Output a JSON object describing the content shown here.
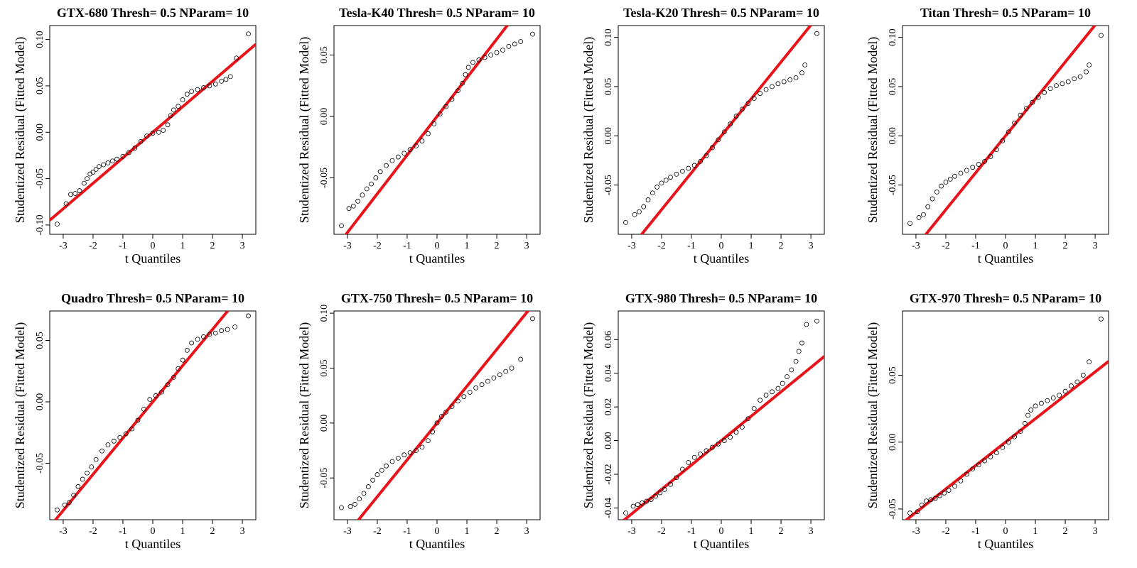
{
  "chart_data": [
    {
      "type": "scatter",
      "title": "GTX-680 Thresh= 0.5 NParam= 10",
      "xlabel": "t Quantiles",
      "ylabel": "Studentized Residual (Fitted Model)",
      "xlim": [
        -3.45,
        3.45
      ],
      "ylim": [
        -0.11,
        0.115
      ],
      "x_ticks": [
        "-3",
        "-2",
        "-1",
        "0",
        "1",
        "2",
        "3"
      ],
      "y_ticks": [
        "-0.10",
        "-0.05",
        "0.00",
        "0.05",
        "0.10"
      ],
      "reference_line": {
        "intercept": 0.0,
        "slope": 0.0275,
        "color": "#e8141a"
      },
      "points": {
        "x": [
          -3.2,
          -2.9,
          -2.75,
          -2.6,
          -2.45,
          -2.3,
          -2.2,
          -2.1,
          -2.0,
          -1.9,
          -1.8,
          -1.65,
          -1.5,
          -1.35,
          -1.2,
          -1.0,
          -0.8,
          -0.6,
          -0.4,
          -0.2,
          0.0,
          0.2,
          0.35,
          0.5,
          0.6,
          0.7,
          0.85,
          1.0,
          1.15,
          1.3,
          1.5,
          1.7,
          1.9,
          2.1,
          2.3,
          2.45,
          2.6,
          2.8,
          3.2
        ],
        "y": [
          -0.099,
          -0.077,
          -0.067,
          -0.066,
          -0.063,
          -0.055,
          -0.05,
          -0.045,
          -0.043,
          -0.04,
          -0.037,
          -0.035,
          -0.033,
          -0.031,
          -0.029,
          -0.026,
          -0.022,
          -0.017,
          -0.01,
          -0.004,
          -0.001,
          0.0,
          0.002,
          0.008,
          0.018,
          0.024,
          0.028,
          0.035,
          0.041,
          0.044,
          0.046,
          0.048,
          0.05,
          0.052,
          0.055,
          0.057,
          0.06,
          0.08,
          0.106
        ]
      }
    },
    {
      "type": "scatter",
      "title": "Tesla-K40 Thresh= 0.5 NParam= 10",
      "xlabel": "t Quantiles",
      "ylabel": "Studentized Residual (Fitted Model)",
      "xlim": [
        -3.45,
        3.45
      ],
      "ylim": [
        -0.096,
        0.074
      ],
      "x_ticks": [
        "-3",
        "-2",
        "-1",
        "0",
        "1",
        "2",
        "3"
      ],
      "y_ticks": [
        "-0.05",
        "0.00",
        "0.05"
      ],
      "reference_line": {
        "intercept": 0.0,
        "slope": 0.0315,
        "color": "#e8141a"
      },
      "points": {
        "x": [
          -3.2,
          -2.95,
          -2.8,
          -2.65,
          -2.5,
          -2.35,
          -2.2,
          -2.05,
          -1.9,
          -1.7,
          -1.5,
          -1.3,
          -1.1,
          -0.9,
          -0.7,
          -0.5,
          -0.3,
          -0.1,
          0.1,
          0.3,
          0.5,
          0.7,
          0.85,
          0.95,
          1.05,
          1.2,
          1.4,
          1.6,
          1.8,
          2.0,
          2.2,
          2.4,
          2.6,
          2.8,
          3.2
        ],
        "y": [
          -0.089,
          -0.075,
          -0.073,
          -0.069,
          -0.064,
          -0.059,
          -0.055,
          -0.05,
          -0.045,
          -0.04,
          -0.036,
          -0.033,
          -0.03,
          -0.027,
          -0.024,
          -0.02,
          -0.014,
          -0.006,
          0.002,
          0.008,
          0.014,
          0.021,
          0.027,
          0.034,
          0.04,
          0.044,
          0.046,
          0.048,
          0.05,
          0.052,
          0.054,
          0.057,
          0.059,
          0.061,
          0.067
        ]
      }
    },
    {
      "type": "scatter",
      "title": "Tesla-K20 Thresh= 0.5 NParam= 10",
      "xlabel": "t Quantiles",
      "ylabel": "Studentized Residual (Fitted Model)",
      "xlim": [
        -3.45,
        3.45
      ],
      "ylim": [
        -0.1,
        0.112
      ],
      "x_ticks": [
        "-3",
        "-2",
        "-1",
        "0",
        "1",
        "2",
        "3"
      ],
      "y_ticks": [
        "-0.05",
        "0.00",
        "0.05",
        "0.10"
      ],
      "reference_line": {
        "intercept": 0.0,
        "slope": 0.0375,
        "color": "#e8141a"
      },
      "points": {
        "x": [
          -3.2,
          -2.9,
          -2.75,
          -2.6,
          -2.45,
          -2.3,
          -2.15,
          -2.0,
          -1.85,
          -1.7,
          -1.5,
          -1.3,
          -1.1,
          -0.9,
          -0.7,
          -0.5,
          -0.3,
          -0.1,
          0.1,
          0.3,
          0.5,
          0.7,
          0.9,
          1.1,
          1.3,
          1.5,
          1.7,
          1.9,
          2.1,
          2.3,
          2.5,
          2.7,
          2.8,
          3.2
        ],
        "y": [
          -0.088,
          -0.08,
          -0.077,
          -0.072,
          -0.065,
          -0.058,
          -0.052,
          -0.048,
          -0.045,
          -0.042,
          -0.039,
          -0.036,
          -0.033,
          -0.03,
          -0.026,
          -0.02,
          -0.012,
          -0.004,
          0.004,
          0.012,
          0.02,
          0.027,
          0.033,
          0.038,
          0.043,
          0.047,
          0.05,
          0.053,
          0.055,
          0.057,
          0.059,
          0.064,
          0.072,
          0.104
        ]
      }
    },
    {
      "type": "scatter",
      "title": "Titan Thresh= 0.5 NParam= 10",
      "xlabel": "t Quantiles",
      "ylabel": "Studentized Residual (Fitted Model)",
      "xlim": [
        -3.45,
        3.45
      ],
      "ylim": [
        -0.1,
        0.112
      ],
      "x_ticks": [
        "-3",
        "-2",
        "-1",
        "0",
        "1",
        "2",
        "3"
      ],
      "y_ticks": [
        "-0.05",
        "0.00",
        "0.05",
        "0.10"
      ],
      "reference_line": {
        "intercept": 0.0,
        "slope": 0.0375,
        "color": "#e8141a"
      },
      "points": {
        "x": [
          -3.2,
          -2.9,
          -2.75,
          -2.6,
          -2.45,
          -2.3,
          -2.15,
          -2.0,
          -1.85,
          -1.7,
          -1.5,
          -1.3,
          -1.1,
          -0.9,
          -0.7,
          -0.5,
          -0.3,
          -0.1,
          0.1,
          0.3,
          0.5,
          0.7,
          0.9,
          1.1,
          1.3,
          1.5,
          1.7,
          1.9,
          2.1,
          2.3,
          2.5,
          2.7,
          2.8,
          3.2
        ],
        "y": [
          -0.089,
          -0.083,
          -0.08,
          -0.072,
          -0.064,
          -0.057,
          -0.051,
          -0.047,
          -0.044,
          -0.041,
          -0.038,
          -0.035,
          -0.032,
          -0.029,
          -0.026,
          -0.021,
          -0.014,
          -0.005,
          0.004,
          0.013,
          0.021,
          0.028,
          0.034,
          0.039,
          0.044,
          0.048,
          0.051,
          0.053,
          0.055,
          0.058,
          0.06,
          0.065,
          0.072,
          0.102
        ]
      }
    },
    {
      "type": "scatter",
      "title": "Quadro Thresh= 0.5 NParam= 10",
      "xlabel": "t Quantiles",
      "ylabel": "Studentized Residual (Fitted Model)",
      "xlim": [
        -3.45,
        3.45
      ],
      "ylim": [
        -0.096,
        0.074
      ],
      "x_ticks": [
        "-3",
        "-2",
        "-1",
        "0",
        "1",
        "2",
        "3"
      ],
      "y_ticks": [
        "-0.05",
        "0.00",
        "0.05"
      ],
      "reference_line": {
        "intercept": 0.0,
        "slope": 0.0295,
        "color": "#e8141a"
      },
      "points": {
        "x": [
          -3.2,
          -2.95,
          -2.8,
          -2.65,
          -2.5,
          -2.35,
          -2.2,
          -2.05,
          -1.9,
          -1.7,
          -1.5,
          -1.3,
          -1.1,
          -0.9,
          -0.7,
          -0.5,
          -0.3,
          -0.1,
          0.1,
          0.3,
          0.5,
          0.7,
          0.85,
          1.0,
          1.15,
          1.3,
          1.5,
          1.7,
          1.9,
          2.1,
          2.3,
          2.5,
          2.75,
          3.2
        ],
        "y": [
          -0.088,
          -0.084,
          -0.082,
          -0.076,
          -0.069,
          -0.063,
          -0.058,
          -0.053,
          -0.047,
          -0.04,
          -0.035,
          -0.032,
          -0.029,
          -0.026,
          -0.022,
          -0.015,
          -0.006,
          0.002,
          0.005,
          0.008,
          0.014,
          0.02,
          0.027,
          0.034,
          0.042,
          0.048,
          0.051,
          0.053,
          0.055,
          0.056,
          0.058,
          0.059,
          0.061,
          0.07
        ]
      }
    },
    {
      "type": "scatter",
      "title": "GTX-750 Thresh= 0.5 NParam= 10",
      "xlabel": "t Quantiles",
      "ylabel": "Studentized Residual (Fitted Model)",
      "xlim": [
        -3.45,
        3.45
      ],
      "ylim": [
        -0.088,
        0.102
      ],
      "x_ticks": [
        "-3",
        "-2",
        "-1",
        "0",
        "1",
        "2",
        "3"
      ],
      "y_ticks": [
        "-0.05",
        "0.00",
        "0.05",
        "0.10"
      ],
      "reference_line": {
        "intercept": 0.0,
        "slope": 0.0335,
        "color": "#e8141a"
      },
      "points": {
        "x": [
          -3.2,
          -2.9,
          -2.75,
          -2.6,
          -2.45,
          -2.3,
          -2.15,
          -2.0,
          -1.85,
          -1.7,
          -1.5,
          -1.3,
          -1.1,
          -0.9,
          -0.7,
          -0.5,
          -0.3,
          -0.15,
          0.0,
          0.15,
          0.3,
          0.5,
          0.7,
          0.9,
          1.1,
          1.3,
          1.5,
          1.7,
          1.9,
          2.1,
          2.3,
          2.5,
          2.8,
          3.2
        ],
        "y": [
          -0.077,
          -0.076,
          -0.074,
          -0.069,
          -0.064,
          -0.058,
          -0.052,
          -0.047,
          -0.043,
          -0.039,
          -0.035,
          -0.032,
          -0.029,
          -0.027,
          -0.025,
          -0.022,
          -0.016,
          -0.008,
          0.0,
          0.006,
          0.01,
          0.015,
          0.02,
          0.024,
          0.028,
          0.032,
          0.035,
          0.038,
          0.041,
          0.044,
          0.047,
          0.05,
          0.058,
          0.095
        ]
      }
    },
    {
      "type": "scatter",
      "title": "GTX-980 Thresh= 0.5 NParam= 10",
      "xlabel": "t Quantiles",
      "ylabel": "Studentized Residual (Fitted Model)",
      "xlim": [
        -3.45,
        3.45
      ],
      "ylim": [
        -0.047,
        0.077
      ],
      "x_ticks": [
        "-3",
        "-2",
        "-1",
        "0",
        "1",
        "2",
        "3"
      ],
      "y_ticks": [
        "-0.04",
        "-0.02",
        "0.00",
        "0.02",
        "0.04",
        "0.06"
      ],
      "reference_line": {
        "intercept": 0.0,
        "slope": 0.0145,
        "color": "#e8141a"
      },
      "points": {
        "x": [
          -3.2,
          -2.95,
          -2.8,
          -2.65,
          -2.5,
          -2.35,
          -2.2,
          -2.05,
          -1.9,
          -1.7,
          -1.5,
          -1.3,
          -1.1,
          -0.9,
          -0.7,
          -0.5,
          -0.3,
          -0.1,
          0.1,
          0.3,
          0.5,
          0.7,
          0.9,
          1.1,
          1.3,
          1.5,
          1.7,
          1.9,
          2.05,
          2.2,
          2.35,
          2.5,
          2.6,
          2.7,
          2.85,
          3.2
        ],
        "y": [
          -0.043,
          -0.039,
          -0.038,
          -0.037,
          -0.036,
          -0.035,
          -0.033,
          -0.031,
          -0.029,
          -0.026,
          -0.022,
          -0.017,
          -0.013,
          -0.01,
          -0.008,
          -0.006,
          -0.004,
          -0.002,
          0.0,
          0.002,
          0.005,
          0.008,
          0.013,
          0.019,
          0.024,
          0.027,
          0.029,
          0.031,
          0.034,
          0.038,
          0.042,
          0.047,
          0.053,
          0.058,
          0.069,
          0.071
        ]
      }
    },
    {
      "type": "scatter",
      "title": "GTX-970 Thresh= 0.5 NParam= 10",
      "xlabel": "t Quantiles",
      "ylabel": "Studentized Residual (Fitted Model)",
      "xlim": [
        -3.45,
        3.45
      ],
      "ylim": [
        -0.058,
        0.098
      ],
      "x_ticks": [
        "-3",
        "-2",
        "-1",
        "0",
        "1",
        "2",
        "3"
      ],
      "y_ticks": [
        "-0.05",
        "0.00",
        "0.05"
      ],
      "reference_line": {
        "intercept": 0.0,
        "slope": 0.0175,
        "color": "#e8141a"
      },
      "points": {
        "x": [
          -3.2,
          -2.95,
          -2.8,
          -2.65,
          -2.5,
          -2.35,
          -2.2,
          -2.05,
          -1.9,
          -1.7,
          -1.5,
          -1.3,
          -1.1,
          -0.9,
          -0.7,
          -0.5,
          -0.3,
          -0.1,
          0.1,
          0.3,
          0.5,
          0.65,
          0.75,
          0.85,
          1.0,
          1.2,
          1.4,
          1.6,
          1.8,
          2.0,
          2.2,
          2.4,
          2.6,
          2.8,
          3.2
        ],
        "y": [
          -0.053,
          -0.052,
          -0.047,
          -0.044,
          -0.043,
          -0.042,
          -0.04,
          -0.038,
          -0.036,
          -0.033,
          -0.029,
          -0.024,
          -0.02,
          -0.017,
          -0.014,
          -0.011,
          -0.008,
          -0.004,
          0.0,
          0.004,
          0.008,
          0.014,
          0.02,
          0.024,
          0.027,
          0.029,
          0.031,
          0.033,
          0.035,
          0.038,
          0.042,
          0.045,
          0.05,
          0.06,
          0.092
        ]
      }
    }
  ]
}
